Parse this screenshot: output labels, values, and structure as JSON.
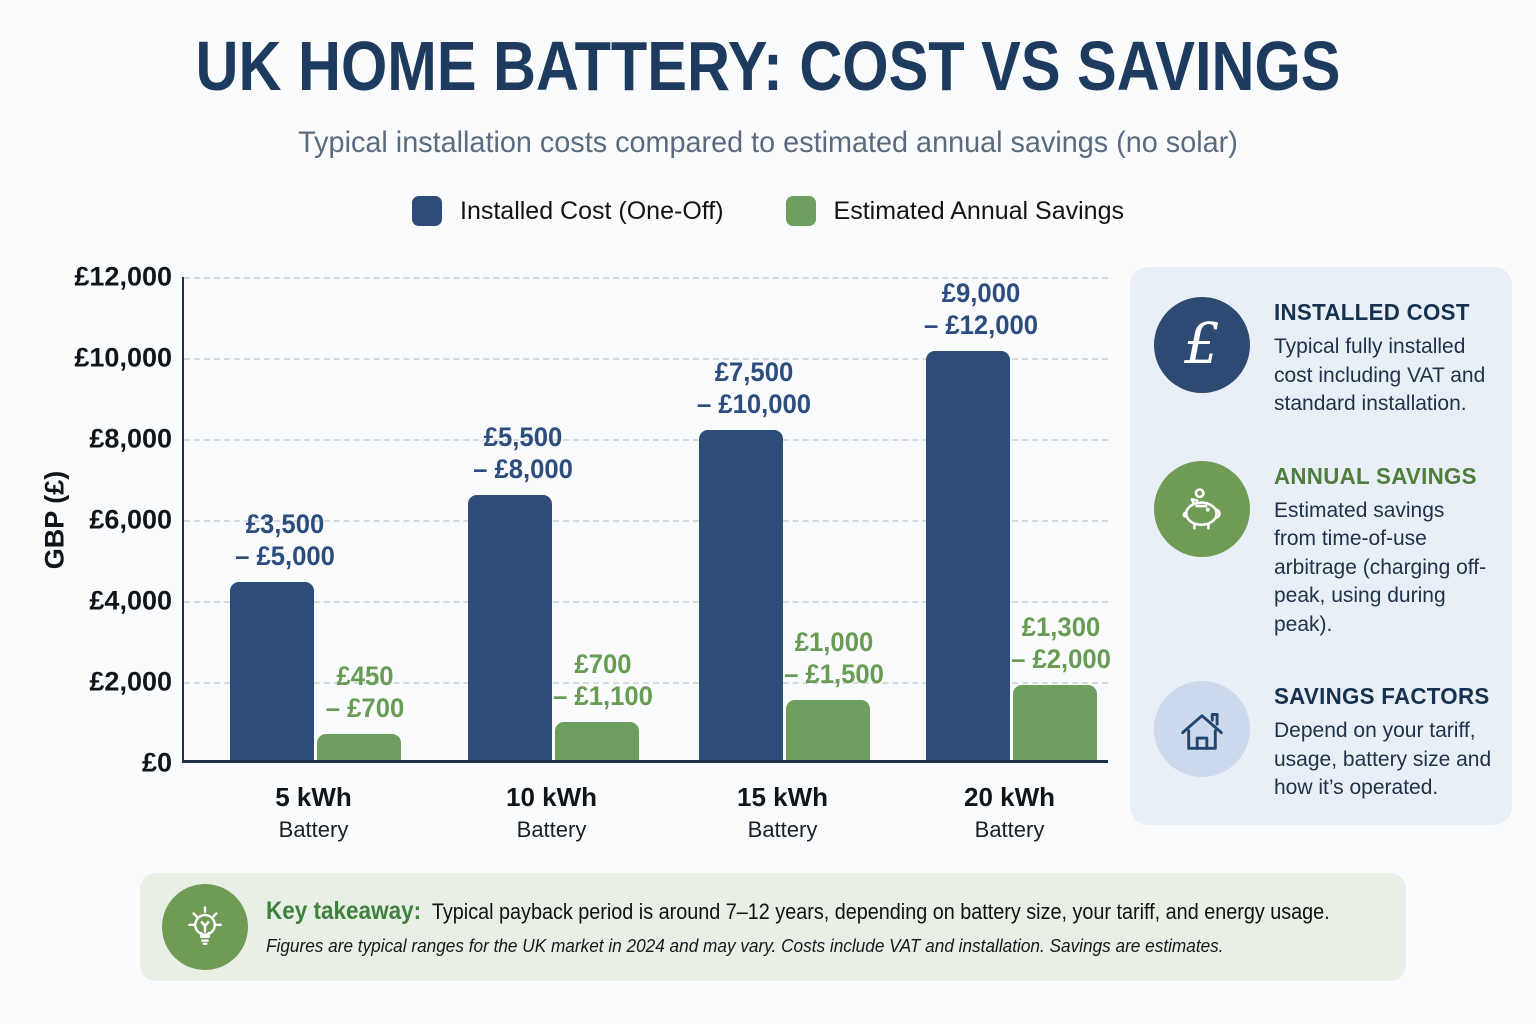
{
  "title": "UK HOME BATTERY: COST VS SAVINGS",
  "subtitle": "Typical installation costs compared to estimated annual savings (no solar)",
  "legend": {
    "cost": "Installed Cost (One-Off)",
    "savings": "Estimated Annual Savings"
  },
  "chart_data": {
    "type": "bar",
    "title": "UK Home Battery: Cost vs Savings",
    "xlabel": "",
    "ylabel": "GBP (£)",
    "ylim": [
      0,
      12000
    ],
    "ytick_step": 2000,
    "yticks": [
      "£12,000",
      "£10,000",
      "£8,000",
      "£6,000",
      "£4,000",
      "£2,000",
      "£0"
    ],
    "grid": "horizontal-dashed",
    "legend_position": "top",
    "categories": [
      {
        "label": "5 kWh",
        "sublabel": "Battery"
      },
      {
        "label": "10 kWh",
        "sublabel": "Battery"
      },
      {
        "label": "15 kWh",
        "sublabel": "Battery"
      },
      {
        "label": "20 kWh",
        "sublabel": "Battery"
      }
    ],
    "series": [
      {
        "name": "Installed Cost (One-Off)",
        "color": "#2e4c78",
        "bar_values": [
          4400,
          6550,
          8150,
          10100
        ],
        "ranges_gbp": [
          [
            3500,
            5000
          ],
          [
            5500,
            8000
          ],
          [
            7500,
            10000
          ],
          [
            9000,
            12000
          ]
        ],
        "range_labels": [
          "£3,500\n– £5,000",
          "£5,500\n– £8,000",
          "£7,500\n– £10,000",
          "£9,000\n– £12,000"
        ]
      },
      {
        "name": "Estimated Annual Savings",
        "color": "#6d9e5d",
        "bar_values": [
          650,
          950,
          1480,
          1850
        ],
        "ranges_gbp": [
          [
            450,
            700
          ],
          [
            700,
            1100
          ],
          [
            1000,
            1500
          ],
          [
            1300,
            2000
          ]
        ],
        "range_labels": [
          "£450\n– £700",
          "£700\n– £1,100",
          "£1,000\n– £1,500",
          "£1,300\n– £2,000"
        ]
      }
    ]
  },
  "sidebar": {
    "items": [
      {
        "icon": "pound-sterling-icon",
        "heading": "INSTALLED COST",
        "body": "Typical fully installed cost including VAT and standard installation."
      },
      {
        "icon": "piggy-bank-icon",
        "heading": "ANNUAL SAVINGS",
        "body": "Estimated savings from time-of-use arbitrage (charging off-peak, using during peak)."
      },
      {
        "icon": "house-icon",
        "heading": "SAVINGS FACTORS",
        "body": "Depend on your tariff, usage, battery size and how it’s operated."
      }
    ]
  },
  "takeaway": {
    "icon": "lightbulb-icon",
    "label": "Key takeaway:",
    "text": "Typical payback period is around 7–12 years, depending on battery size, your tariff, and energy usage.",
    "note": "Figures are typical ranges for the UK market in 2024 and may vary. Costs include VAT and installation. Savings are estimates."
  },
  "colors": {
    "page_bg": "#f9fbfc",
    "title_text": "#1d3a5f",
    "subtitle_text": "#5a6b7e",
    "axis_text": "#10151b",
    "axis_line": "#1f3044",
    "gridline": "#d7dbe0",
    "cost_label": "#2d4d7e",
    "savings_label": "#689c54",
    "sidebar_bg": "#e9eff6",
    "heading_navy": "#16324f",
    "heading_green": "#4e7d3c",
    "body_text": "#203247",
    "icon_navy": "#2c4a72",
    "icon_green": "#6f9b55",
    "icon_lightblue": "#cdd9ec",
    "takeaway_bg": "#e8efe4",
    "takeaway_label": "#40803e"
  }
}
